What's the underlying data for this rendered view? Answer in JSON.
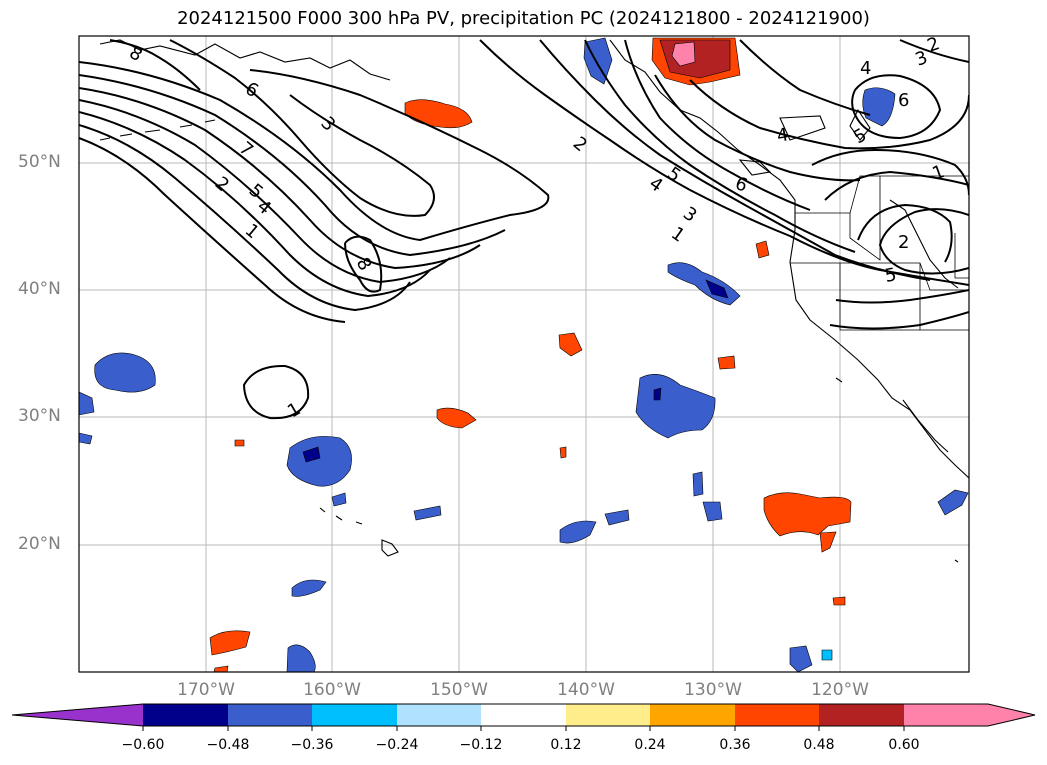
{
  "title": "2024121500 F000 300 hPa PV, precipitation PC (2024121800 - 2024121900)",
  "lat_labels": [
    "50°N",
    "40°N",
    "30°N",
    "20°N"
  ],
  "lon_labels": [
    "170°W",
    "160°W",
    "150°W",
    "140°W",
    "130°W",
    "120°W"
  ],
  "contour_labels": [
    "8",
    "6",
    "7",
    "3",
    "2",
    "5",
    "4",
    "1",
    "8",
    "1",
    "2",
    "4",
    "5",
    "3",
    "1",
    "6",
    "2",
    "4",
    "3",
    "6",
    "5",
    "1",
    "2",
    "5",
    "4"
  ],
  "colorbar": {
    "labels": [
      "−0.60",
      "−0.48",
      "−0.36",
      "−0.24",
      "−0.12",
      "0.12",
      "0.24",
      "0.36",
      "0.48",
      "0.60"
    ],
    "colors": [
      "#9932CC",
      "#00008B",
      "#3A5FCD",
      "#00BFFF",
      "#B0E2FF",
      "#FFFFFF",
      "#FFEC8B",
      "#FFA500",
      "#FF4500",
      "#B22222",
      "#FF82AB"
    ]
  }
}
